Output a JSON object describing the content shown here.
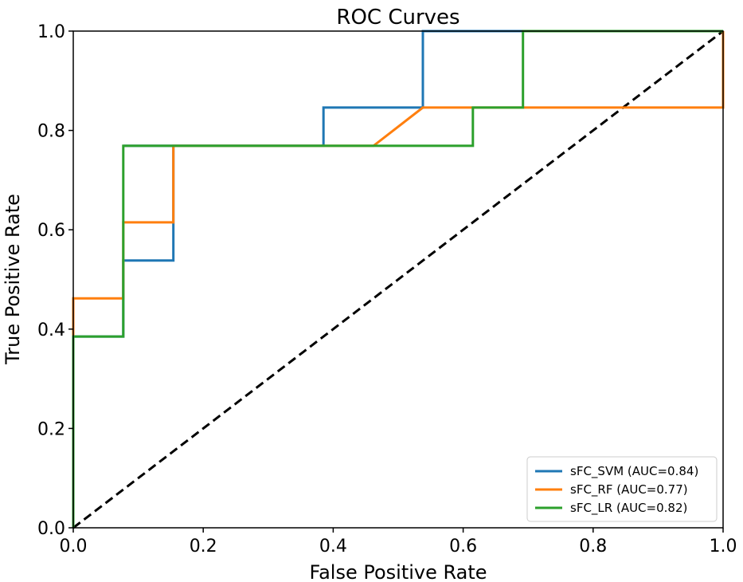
{
  "chart_data": {
    "type": "line",
    "title": "ROC Curves",
    "xlabel": "False Positive Rate",
    "ylabel": "True Positive Rate",
    "xlim": [
      0,
      1
    ],
    "ylim": [
      0,
      1
    ],
    "xticks": [
      "0.0",
      "0.2",
      "0.4",
      "0.6",
      "0.8",
      "1.0"
    ],
    "yticks": [
      "0.0",
      "0.2",
      "0.4",
      "0.6",
      "0.8",
      "1.0"
    ],
    "grid": false,
    "legend_position": "bottom-right",
    "series": [
      {
        "name": "sFC_SVM (AUC=0.84)",
        "color": "#1f77b4",
        "x": [
          0,
          0,
          0.077,
          0.077,
          0.154,
          0.154,
          0.077,
          0.077,
          0.385,
          0.385,
          0.538,
          0.538,
          1.0
        ],
        "y": [
          0,
          0.385,
          0.385,
          0.538,
          0.538,
          0.769,
          0.769,
          0.769,
          0.769,
          0.846,
          0.846,
          1.0,
          1.0
        ]
      },
      {
        "name": "sFC_RF (AUC=0.77)",
        "color": "#ff7f0e",
        "x": [
          0,
          0,
          0.077,
          0.077,
          0.154,
          0.154,
          0.462,
          0.538,
          1.0,
          1.0
        ],
        "y": [
          0,
          0.462,
          0.462,
          0.615,
          0.615,
          0.769,
          0.769,
          0.846,
          0.846,
          1.0
        ]
      },
      {
        "name": "sFC_LR (AUC=0.82)",
        "color": "#2ca02c",
        "x": [
          0,
          0,
          0.077,
          0.077,
          0.615,
          0.615,
          0.692,
          0.692,
          1.0
        ],
        "y": [
          0,
          0.385,
          0.385,
          0.769,
          0.769,
          0.846,
          0.846,
          1.0,
          1.0
        ]
      }
    ],
    "reference_line": {
      "style": "dashed",
      "color": "#000000",
      "x": [
        0,
        1
      ],
      "y": [
        0,
        1
      ]
    }
  }
}
